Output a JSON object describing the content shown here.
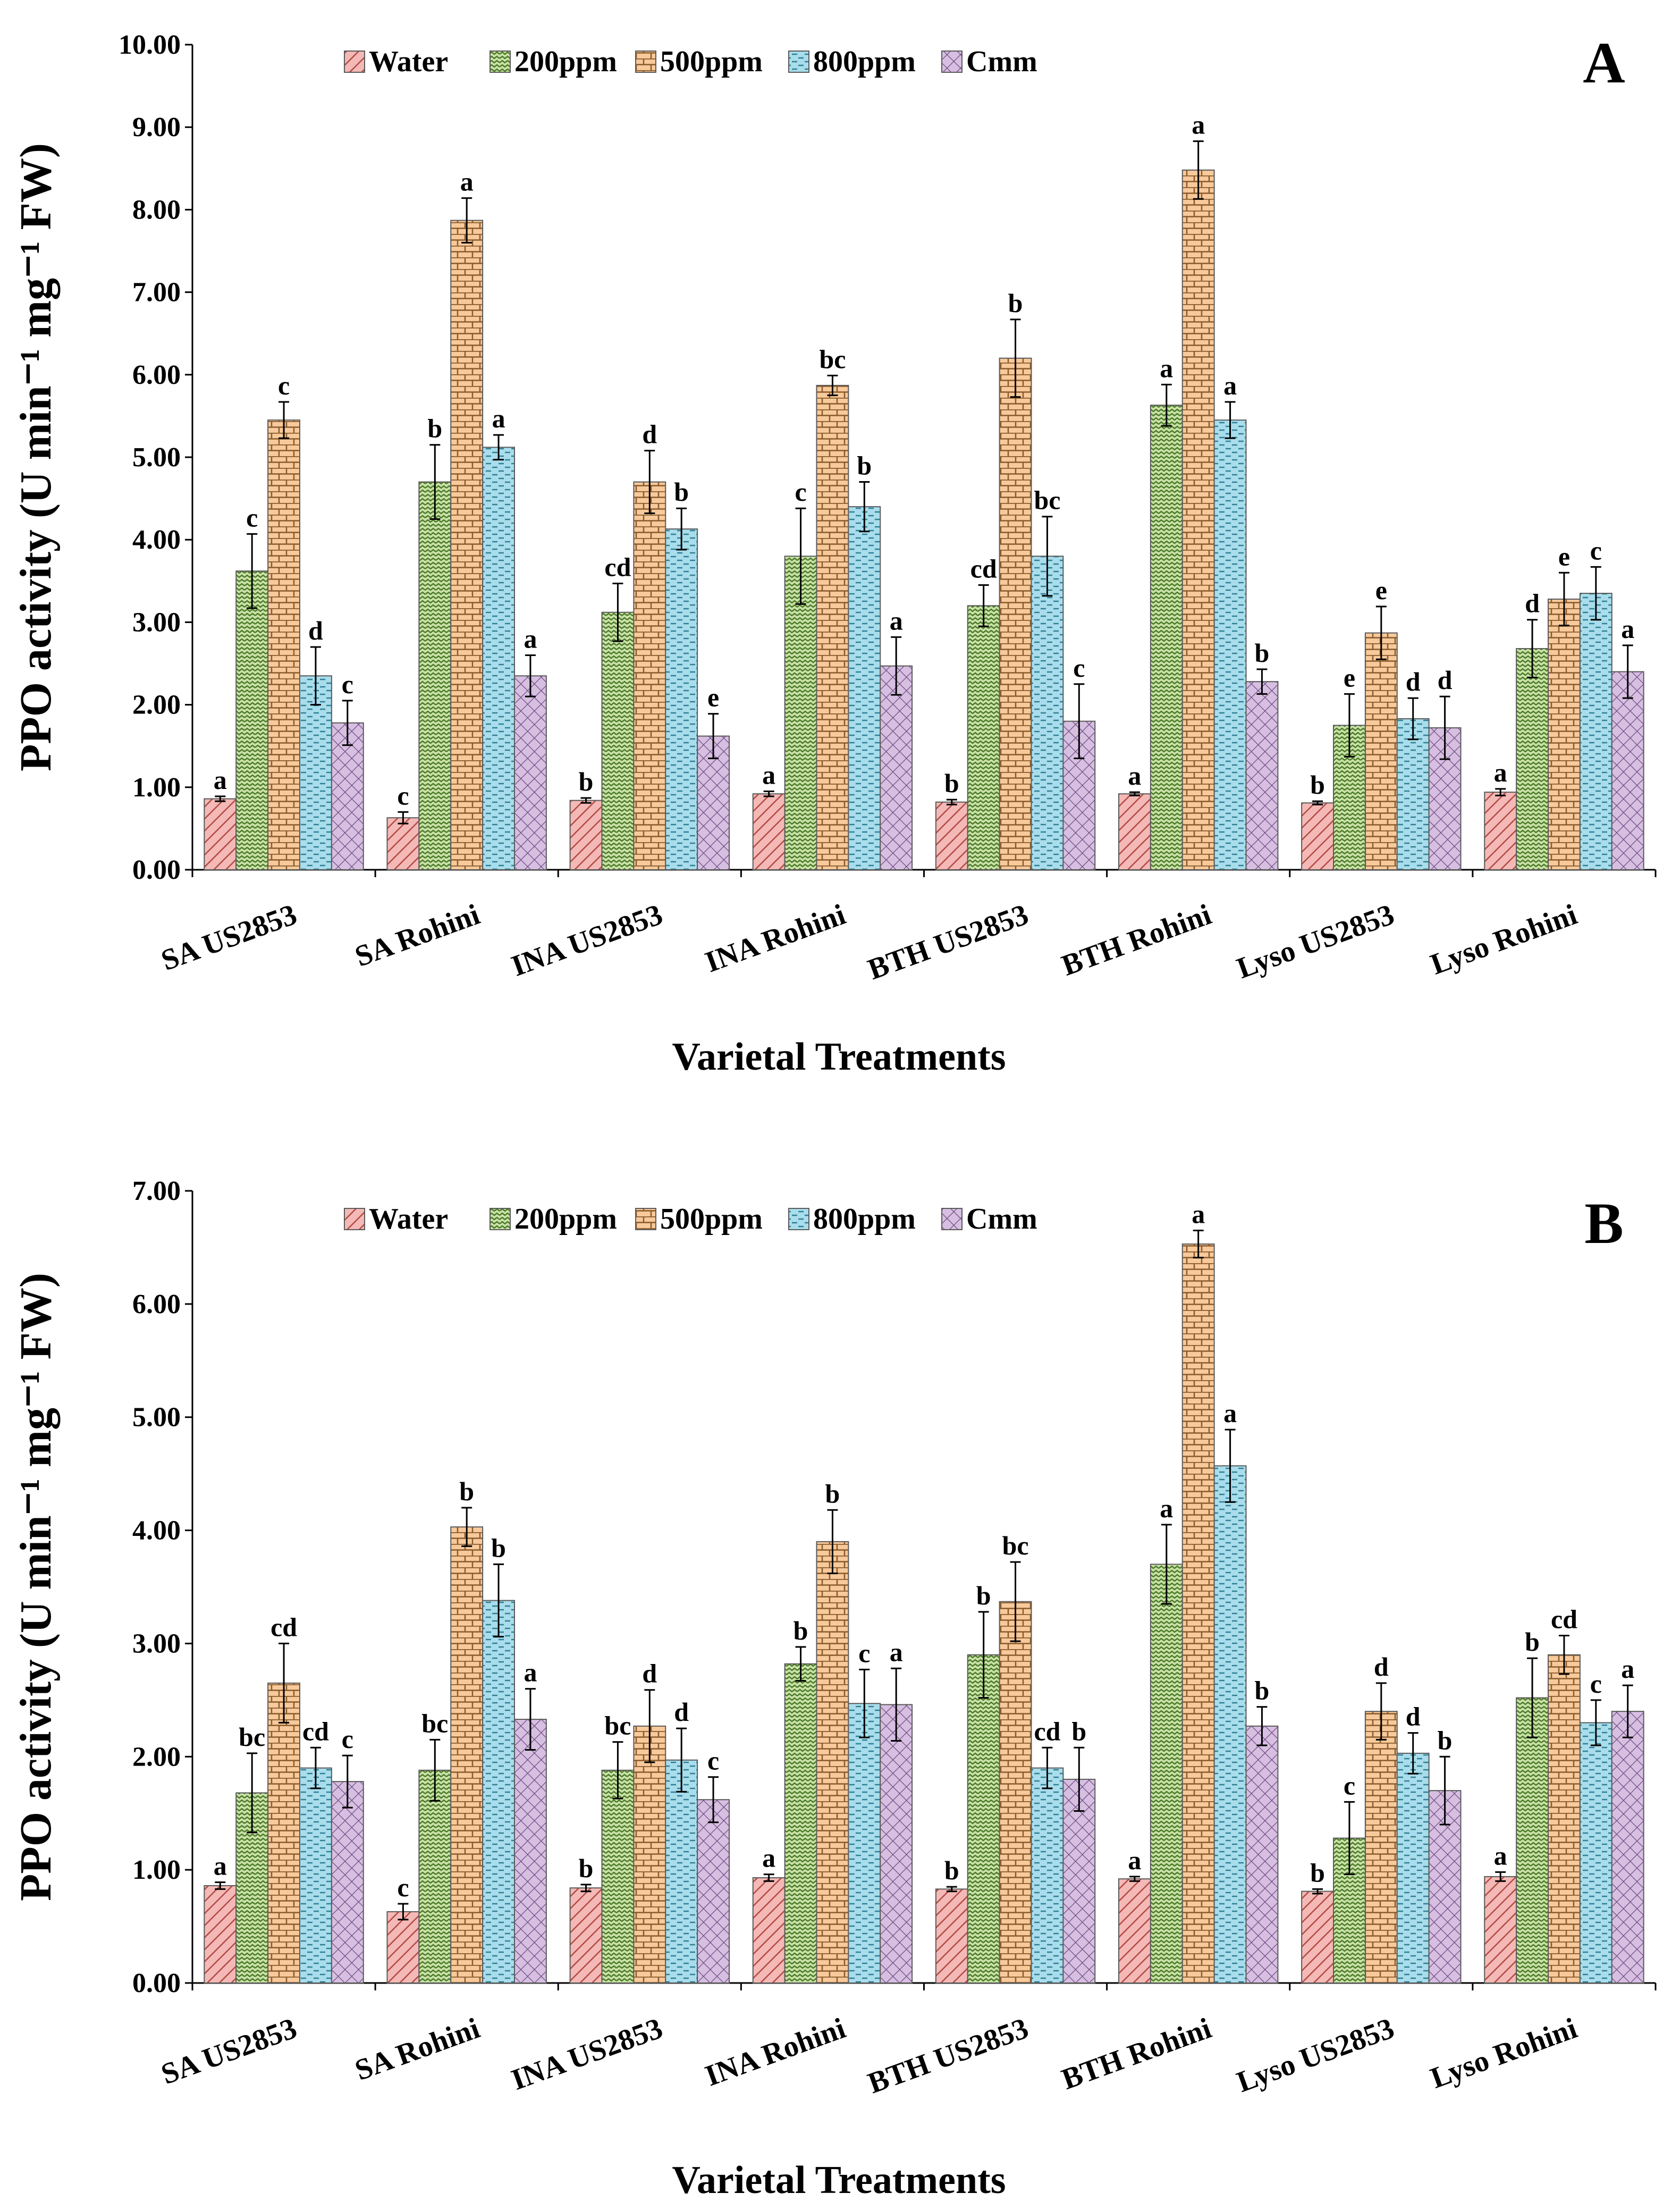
{
  "figure": {
    "panels": [
      "A",
      "B"
    ]
  },
  "colors": {
    "Water": "#f4b9b6",
    "200ppm": "#c9e3a7",
    "500ppm": "#f7c99b",
    "800ppm": "#a9ddeb",
    "Cmm": "#d6bfe0",
    "stroke": "#5a5a5a"
  },
  "chart_data": [
    {
      "type": "bar",
      "panel_label": "A",
      "title": "",
      "xlabel": "Varietal Treatments",
      "ylabel": "PPO activity (U min⁻¹ mg⁻¹ FW)",
      "ylim": [
        0,
        10
      ],
      "yticks": [
        "0.00",
        "1.00",
        "2.00",
        "3.00",
        "4.00",
        "5.00",
        "6.00",
        "7.00",
        "8.00",
        "9.00",
        "10.00"
      ],
      "legend_position": "top",
      "categories": [
        "SA US2853",
        "SA Rohini",
        "INA US2853",
        "INA Rohini",
        "BTH US2853",
        "BTH Rohini",
        "Lyso US2853",
        "Lyso Rohini"
      ],
      "series": [
        {
          "name": "Water",
          "values": [
            0.86,
            0.63,
            0.84,
            0.92,
            0.82,
            0.92,
            0.81,
            0.94
          ],
          "errors": [
            0.03,
            0.07,
            0.03,
            0.03,
            0.03,
            0.02,
            0.02,
            0.04
          ],
          "labels": [
            "a",
            "c",
            "b",
            "a",
            "b",
            "a",
            "b",
            "a"
          ]
        },
        {
          "name": "200ppm",
          "values": [
            3.62,
            4.7,
            3.12,
            3.8,
            3.2,
            5.63,
            1.75,
            2.68
          ],
          "errors": [
            0.45,
            0.45,
            0.35,
            0.58,
            0.25,
            0.25,
            0.38,
            0.35
          ],
          "labels": [
            "c",
            "b",
            "cd",
            "c",
            "cd",
            "a",
            "e",
            "d"
          ]
        },
        {
          "name": "500ppm",
          "values": [
            5.45,
            7.87,
            4.7,
            5.87,
            6.2,
            8.48,
            2.87,
            3.28
          ],
          "errors": [
            0.22,
            0.27,
            0.38,
            0.12,
            0.47,
            0.35,
            0.32,
            0.32
          ],
          "labels": [
            "c",
            "a",
            "d",
            "bc",
            "b",
            "a",
            "e",
            "e"
          ]
        },
        {
          "name": "800ppm",
          "values": [
            2.35,
            5.12,
            4.13,
            4.4,
            3.8,
            5.45,
            1.83,
            3.35
          ],
          "errors": [
            0.35,
            0.15,
            0.25,
            0.3,
            0.48,
            0.22,
            0.25,
            0.32
          ],
          "labels": [
            "d",
            "a",
            "b",
            "b",
            "bc",
            "a",
            "d",
            "c"
          ]
        },
        {
          "name": "Cmm",
          "values": [
            1.78,
            2.35,
            1.62,
            2.47,
            1.8,
            2.28,
            1.72,
            2.4
          ],
          "errors": [
            0.27,
            0.25,
            0.27,
            0.35,
            0.45,
            0.15,
            0.38,
            0.32
          ],
          "labels": [
            "c",
            "a",
            "e",
            "a",
            "c",
            "b",
            "d",
            "a"
          ]
        }
      ]
    },
    {
      "type": "bar",
      "panel_label": "B",
      "title": "",
      "xlabel": "Varietal Treatments",
      "ylabel": "PPO activity (U min⁻¹ mg⁻¹ FW)",
      "ylim": [
        0,
        7
      ],
      "yticks": [
        "0.00",
        "1.00",
        "2.00",
        "3.00",
        "4.00",
        "5.00",
        "6.00",
        "7.00"
      ],
      "legend_position": "top",
      "categories": [
        "SA US2853",
        "SA Rohini",
        "INA US2853",
        "INA Rohini",
        "BTH US2853",
        "BTH Rohini",
        "Lyso US2853",
        "Lyso Rohini"
      ],
      "series": [
        {
          "name": "Water",
          "values": [
            0.86,
            0.63,
            0.84,
            0.93,
            0.83,
            0.92,
            0.81,
            0.94
          ],
          "errors": [
            0.03,
            0.07,
            0.03,
            0.03,
            0.02,
            0.02,
            0.02,
            0.04
          ],
          "labels": [
            "a",
            "c",
            "b",
            "a",
            "b",
            "a",
            "b",
            "a"
          ]
        },
        {
          "name": "200ppm",
          "values": [
            1.68,
            1.88,
            1.88,
            2.82,
            2.9,
            3.7,
            1.28,
            2.52
          ],
          "errors": [
            0.35,
            0.27,
            0.25,
            0.15,
            0.38,
            0.35,
            0.32,
            0.35
          ],
          "labels": [
            "bc",
            "bc",
            "bc",
            "b",
            "b",
            "a",
            "c",
            "b"
          ]
        },
        {
          "name": "500ppm",
          "values": [
            2.65,
            4.03,
            2.27,
            3.9,
            3.37,
            6.53,
            2.4,
            2.9
          ],
          "errors": [
            0.35,
            0.17,
            0.32,
            0.28,
            0.35,
            0.12,
            0.25,
            0.17
          ],
          "labels": [
            "cd",
            "b",
            "d",
            "b",
            "bc",
            "a",
            "d",
            "cd"
          ]
        },
        {
          "name": "800ppm",
          "values": [
            1.9,
            3.38,
            1.97,
            2.47,
            1.9,
            4.57,
            2.03,
            2.3
          ],
          "errors": [
            0.18,
            0.32,
            0.28,
            0.3,
            0.18,
            0.32,
            0.18,
            0.2
          ],
          "labels": [
            "cd",
            "b",
            "d",
            "c",
            "cd",
            "a",
            "d",
            "c"
          ]
        },
        {
          "name": "Cmm",
          "values": [
            1.78,
            2.33,
            1.62,
            2.46,
            1.8,
            2.27,
            1.7,
            2.4
          ],
          "errors": [
            0.23,
            0.27,
            0.2,
            0.32,
            0.28,
            0.17,
            0.3,
            0.23
          ],
          "labels": [
            "c",
            "a",
            "c",
            "a",
            "b",
            "b",
            "b",
            "a"
          ]
        }
      ]
    }
  ]
}
